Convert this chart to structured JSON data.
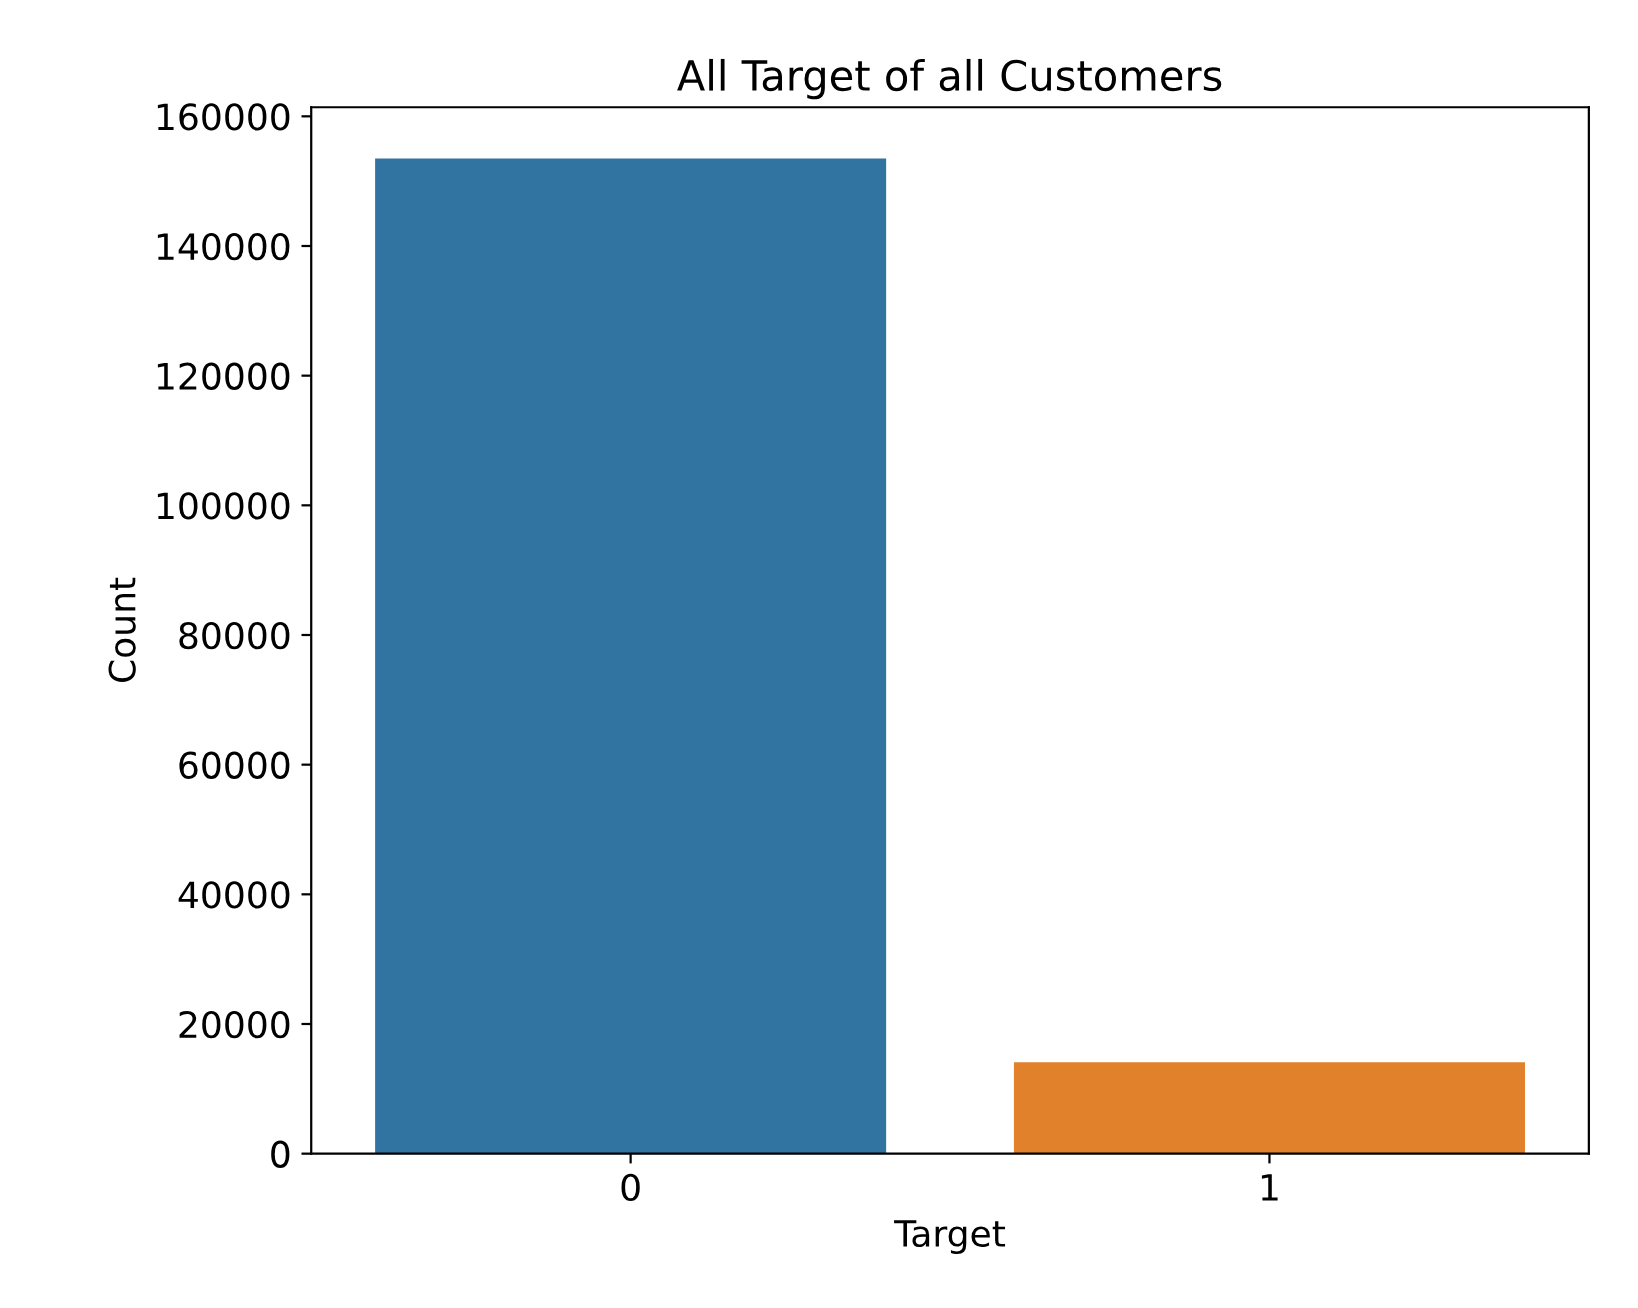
{
  "chart_data": {
    "type": "bar",
    "title": "All Target of all Customers",
    "xlabel": "Target",
    "ylabel": "Count",
    "categories": [
      "0",
      "1"
    ],
    "values": [
      153500,
      14100
    ],
    "colors": [
      "#3274a1",
      "#e1812c"
    ],
    "ylim": [
      0,
      161400
    ],
    "yticks": [
      0,
      20000,
      40000,
      60000,
      80000,
      100000,
      120000,
      140000,
      160000
    ],
    "grid": false,
    "legend": false
  }
}
